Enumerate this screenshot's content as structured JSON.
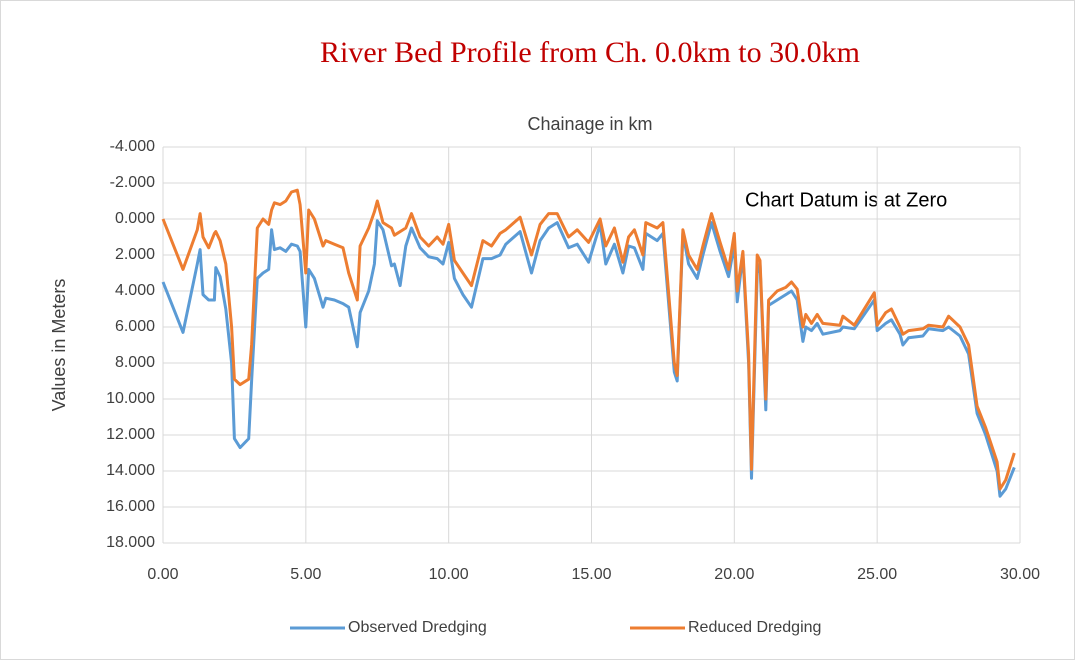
{
  "chart_data": {
    "type": "line",
    "title": "River Bed Profile from Ch. 0.0km to 30.0km",
    "x_axis_label": "Chainage in km",
    "y_axis_label": "Values in Meters",
    "annotation": "Chart Datum is at Zero",
    "x": [
      0,
      0.7,
      1.2,
      1.3,
      1.4,
      1.6,
      1.8,
      1.85,
      2.0,
      2.2,
      2.4,
      2.5,
      2.7,
      3.0,
      3.1,
      3.3,
      3.5,
      3.7,
      3.8,
      3.9,
      4.1,
      4.3,
      4.5,
      4.7,
      4.8,
      5.0,
      5.1,
      5.3,
      5.6,
      5.7,
      6.0,
      6.3,
      6.5,
      6.8,
      6.9,
      7.2,
      7.4,
      7.5,
      7.7,
      8.0,
      8.1,
      8.3,
      8.5,
      8.7,
      9.0,
      9.3,
      9.6,
      9.8,
      10.0,
      10.2,
      10.5,
      10.8,
      11.2,
      11.5,
      11.8,
      12.0,
      12.5,
      12.9,
      13.2,
      13.5,
      13.8,
      14.2,
      14.5,
      14.9,
      15.3,
      15.5,
      15.8,
      16.1,
      16.3,
      16.5,
      16.8,
      16.9,
      17.3,
      17.5,
      17.9,
      18.0,
      18.2,
      18.4,
      18.7,
      18.9,
      19.2,
      19.5,
      19.8,
      20.0,
      20.1,
      20.3,
      20.5,
      20.6,
      20.8,
      20.9,
      21.1,
      21.2,
      21.5,
      21.8,
      22.0,
      22.2,
      22.4,
      22.5,
      22.7,
      22.9,
      23.1,
      23.7,
      23.8,
      24.2,
      24.9,
      25.0,
      25.3,
      25.5,
      25.8,
      25.9,
      26.1,
      26.6,
      26.8,
      27.3,
      27.5,
      27.9,
      28.2,
      28.5,
      28.8,
      29.2,
      29.3,
      29.5,
      29.8
    ],
    "series": [
      {
        "name": "Observed Dredging",
        "color": "#5b9bd5",
        "values": [
          3.5,
          6.3,
          2.5,
          1.7,
          4.2,
          4.5,
          4.5,
          2.7,
          3.2,
          5.0,
          8.0,
          12.2,
          12.7,
          12.2,
          9.0,
          3.3,
          3.0,
          2.8,
          0.6,
          1.7,
          1.6,
          1.8,
          1.4,
          1.5,
          1.8,
          6.0,
          2.8,
          3.3,
          4.9,
          4.4,
          4.5,
          4.7,
          4.9,
          7.1,
          5.2,
          4.0,
          2.5,
          0.1,
          0.6,
          2.6,
          2.5,
          3.7,
          1.5,
          0.5,
          1.6,
          2.1,
          2.2,
          2.5,
          1.3,
          3.3,
          4.2,
          4.9,
          2.2,
          2.2,
          2.0,
          1.4,
          0.7,
          3.0,
          1.2,
          0.5,
          0.2,
          1.6,
          1.4,
          2.4,
          0.3,
          2.5,
          1.4,
          3.0,
          1.5,
          1.6,
          2.8,
          0.8,
          1.2,
          0.8,
          8.5,
          9.0,
          0.8,
          2.5,
          3.3,
          2.0,
          0.2,
          1.8,
          3.2,
          1.4,
          4.6,
          2.0,
          8.0,
          14.4,
          3.0,
          2.5,
          10.6,
          4.8,
          4.5,
          4.2,
          4.0,
          4.5,
          6.8,
          6.0,
          6.2,
          5.8,
          6.4,
          6.2,
          6.0,
          6.1,
          4.5,
          6.2,
          5.8,
          5.6,
          6.4,
          7.0,
          6.6,
          6.5,
          6.1,
          6.2,
          6.0,
          6.5,
          7.5,
          10.8,
          12.0,
          14.0,
          15.4,
          15.0,
          13.8
        ]
      },
      {
        "name": "Reduced Dredging",
        "color": "#ed7d31",
        "values": [
          0,
          2.8,
          0.6,
          -0.3,
          1.0,
          1.6,
          0.8,
          0.7,
          1.2,
          2.5,
          6.0,
          8.9,
          9.2,
          8.9,
          7.0,
          0.5,
          0.0,
          0.3,
          -0.5,
          -0.9,
          -0.8,
          -1.0,
          -1.5,
          -1.6,
          -0.8,
          3.0,
          -0.5,
          0.0,
          1.5,
          1.2,
          1.4,
          1.6,
          3.0,
          4.5,
          1.5,
          0.5,
          -0.4,
          -1.0,
          0.2,
          0.5,
          0.9,
          0.7,
          0.5,
          -0.3,
          1.0,
          1.5,
          1.0,
          1.4,
          0.3,
          2.3,
          3.0,
          3.7,
          1.2,
          1.5,
          0.8,
          0.6,
          -0.1,
          2.0,
          0.3,
          -0.3,
          -0.3,
          1.0,
          0.6,
          1.3,
          0.0,
          1.5,
          0.5,
          2.4,
          1.0,
          0.6,
          2.0,
          0.2,
          0.5,
          0.2,
          8.0,
          8.7,
          0.6,
          2.0,
          2.8,
          1.5,
          -0.3,
          1.3,
          2.8,
          0.8,
          4.0,
          1.8,
          7.5,
          13.9,
          2.0,
          2.3,
          10.0,
          4.5,
          4.0,
          3.8,
          3.5,
          3.9,
          6.0,
          5.3,
          5.8,
          5.3,
          5.8,
          5.9,
          5.4,
          5.9,
          4.1,
          5.9,
          5.2,
          5.0,
          6.0,
          6.4,
          6.2,
          6.1,
          5.9,
          6.0,
          5.4,
          6.0,
          7.0,
          10.4,
          11.6,
          13.5,
          15.0,
          14.5,
          13.0
        ]
      }
    ],
    "xlim": [
      0,
      30
    ],
    "xticks": [
      {
        "value": 0,
        "label": "0.00"
      },
      {
        "value": 5,
        "label": "5.00"
      },
      {
        "value": 10,
        "label": "10.00"
      },
      {
        "value": 15,
        "label": "15.00"
      },
      {
        "value": 20,
        "label": "20.00"
      },
      {
        "value": 25,
        "label": "25.00"
      },
      {
        "value": 30,
        "label": "30.00"
      }
    ],
    "ylim": [
      -4,
      18
    ],
    "y_reversed": true,
    "yticks": [
      {
        "value": -4,
        "label": "-4.000"
      },
      {
        "value": -2,
        "label": "-2.000"
      },
      {
        "value": 0,
        "label": "0.000"
      },
      {
        "value": 2,
        "label": "2.000"
      },
      {
        "value": 4,
        "label": "4.000"
      },
      {
        "value": 6,
        "label": "6.000"
      },
      {
        "value": 8,
        "label": "8.000"
      },
      {
        "value": 10,
        "label": "10.000"
      },
      {
        "value": 12,
        "label": "12.000"
      },
      {
        "value": 14,
        "label": "14.000"
      },
      {
        "value": 16,
        "label": "16.000"
      },
      {
        "value": 18,
        "label": "18.000"
      }
    ],
    "grid": true,
    "legend": "bottom"
  }
}
